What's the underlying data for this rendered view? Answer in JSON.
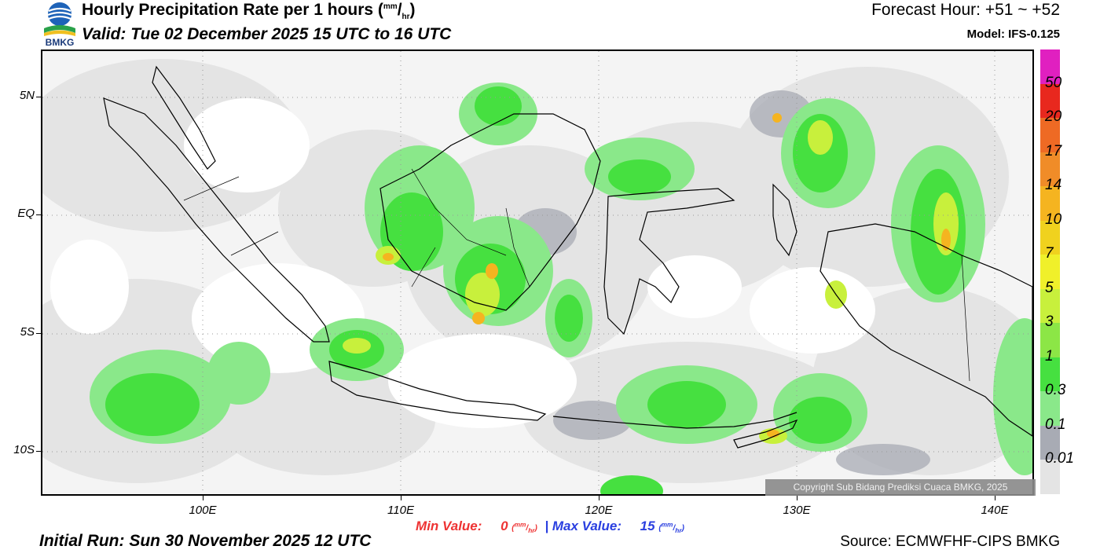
{
  "header": {
    "agency": "BMKG",
    "title": "Hourly Precipitation Rate per 1 hours (",
    "unit_num": "mm",
    "unit_den": "hr",
    "title_end": ")",
    "valid": "Valid: Tue 02 December 2025 15 UTC to 16 UTC",
    "forecast_hour": "Forecast Hour: +51 ~ +52",
    "model": "Model: IFS-0.125"
  },
  "map": {
    "lat_labels": [
      "5N",
      "EQ",
      "5S",
      "10S"
    ],
    "lon_labels": [
      "100E",
      "110E",
      "120E",
      "130E",
      "140E"
    ],
    "copyright": "Copyright Sub Bidang Prediksi Cuaca BMKG, 2025"
  },
  "legend": {
    "labels": [
      "50",
      "20",
      "17",
      "14",
      "10",
      "7",
      "5",
      "3",
      "1",
      "0.3",
      "0.1",
      "0.01"
    ],
    "colors": [
      "#e020c0",
      "#e8281e",
      "#ee6a24",
      "#f08c28",
      "#f5b420",
      "#f0d21e",
      "#f0f02a",
      "#c8f03c",
      "#8ce646",
      "#46e040",
      "#8ae88a",
      "#a8abb4",
      "#e4e4e4"
    ]
  },
  "stats": {
    "min_label": "Min Value:",
    "min_value": "0",
    "separator": "|",
    "max_label": "Max Value:",
    "max_value": "15"
  },
  "footer": {
    "initial_run": "Initial Run: Sun 30 November 2025 12 UTC",
    "source": "Source: ECMWFHF-CIPS BMKG"
  }
}
